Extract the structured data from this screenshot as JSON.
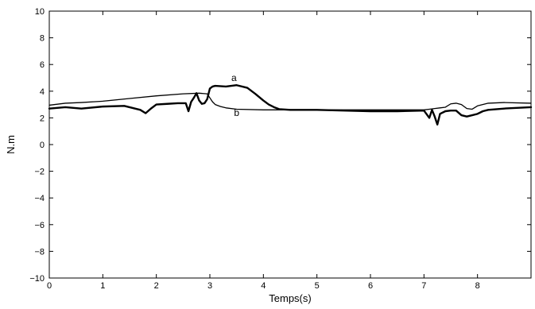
{
  "chart_data": {
    "type": "line",
    "title": "",
    "xlabel": "Temps(s)",
    "ylabel": "N.m",
    "xlim": [
      0,
      9
    ],
    "ylim": [
      -10,
      10
    ],
    "xticks": [
      0,
      1,
      2,
      3,
      4,
      5,
      6,
      7,
      8
    ],
    "xtick_labels": [
      "0",
      "1",
      "2",
      "3",
      "4",
      "5",
      "6",
      "7",
      "8"
    ],
    "yticks": [
      -10,
      -8,
      -6,
      -4,
      -2,
      0,
      2,
      4,
      6,
      8,
      10
    ],
    "ytick_labels": [
      "−10",
      "−8",
      "−6",
      "−4",
      "−2",
      "0",
      "2",
      "4",
      "6",
      "8",
      "10"
    ],
    "grid": false,
    "legend": "none",
    "colors": {
      "line": "#000000",
      "axes": "#000000",
      "background": "#ffffff"
    },
    "annotations": [
      {
        "text": "a",
        "x": 3.45,
        "y": 4.75
      },
      {
        "text": "b",
        "x": 3.5,
        "y": 2.15
      }
    ],
    "series": [
      {
        "x": [
          0,
          0.3,
          0.6,
          1.0,
          1.4,
          1.7,
          1.8,
          1.9,
          2.0,
          2.2,
          2.4,
          2.55,
          2.6,
          2.65,
          2.7,
          2.75,
          2.8,
          2.85,
          2.9,
          2.95,
          3.0,
          3.05,
          3.1,
          3.3,
          3.5,
          3.7,
          3.85,
          4.0,
          4.1,
          4.2,
          4.3,
          4.5,
          5.0,
          5.5,
          6.0,
          6.5,
          7.0,
          7.1,
          7.15,
          7.2,
          7.25,
          7.3,
          7.4,
          7.5,
          7.6,
          7.7,
          7.8,
          7.9,
          8.0,
          8.1,
          8.2,
          8.5,
          9.0
        ],
        "y": [
          2.7,
          2.8,
          2.7,
          2.85,
          2.9,
          2.6,
          2.35,
          2.7,
          3.0,
          3.05,
          3.1,
          3.1,
          2.5,
          3.2,
          3.5,
          3.85,
          3.3,
          3.05,
          3.1,
          3.4,
          4.2,
          4.35,
          4.4,
          4.35,
          4.45,
          4.25,
          3.8,
          3.3,
          3.0,
          2.8,
          2.65,
          2.6,
          2.6,
          2.55,
          2.5,
          2.5,
          2.55,
          2.0,
          2.6,
          2.1,
          1.5,
          2.3,
          2.5,
          2.55,
          2.55,
          2.2,
          2.1,
          2.2,
          2.3,
          2.5,
          2.6,
          2.7,
          2.8
        ],
        "stroke_weight": "bold"
      },
      {
        "x": [
          0,
          0.3,
          0.6,
          1.0,
          1.5,
          2.0,
          2.5,
          2.8,
          2.95,
          3.0,
          3.05,
          3.1,
          3.2,
          3.3,
          3.5,
          4.0,
          5.0,
          6.0,
          7.0,
          7.1,
          7.2,
          7.3,
          7.4,
          7.5,
          7.6,
          7.7,
          7.8,
          7.9,
          8.0,
          8.2,
          8.5,
          9.0
        ],
        "y": [
          2.95,
          3.1,
          3.15,
          3.25,
          3.45,
          3.65,
          3.8,
          3.85,
          3.8,
          3.5,
          3.2,
          3.0,
          2.85,
          2.75,
          2.65,
          2.6,
          2.6,
          2.6,
          2.6,
          2.65,
          2.7,
          2.75,
          2.8,
          3.05,
          3.1,
          3.0,
          2.7,
          2.65,
          2.9,
          3.1,
          3.15,
          3.1
        ],
        "stroke_weight": "normal"
      }
    ]
  }
}
